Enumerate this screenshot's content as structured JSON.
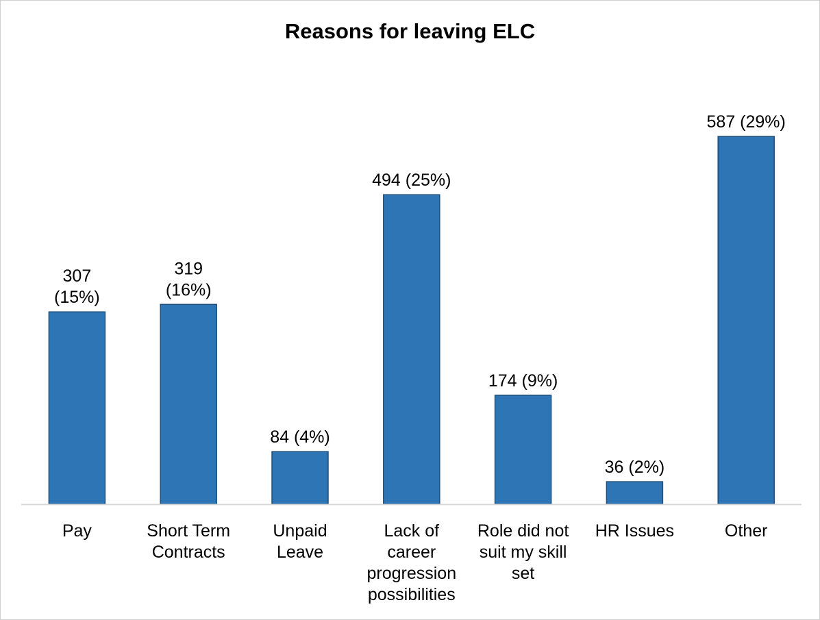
{
  "chart_data": {
    "type": "bar",
    "title": "Reasons for leaving ELC",
    "xlabel": "",
    "ylabel": "",
    "grid": false,
    "legend": "none",
    "ylim": [
      0,
      600
    ],
    "bar_color": "#2e75b6",
    "bar_edge_color": "#1f4e79",
    "axis_color": "#d9d9d9",
    "categories": [
      [
        "Pay"
      ],
      [
        "Short Term",
        "Contracts"
      ],
      [
        "Unpaid",
        "Leave"
      ],
      [
        "Lack of",
        "career",
        "progression",
        "possibilities"
      ],
      [
        "Role did not",
        "suit my skill",
        "set"
      ],
      [
        "HR Issues"
      ],
      [
        "Other"
      ]
    ],
    "values": [
      307,
      319,
      84,
      494,
      174,
      36,
      587
    ],
    "data_labels": [
      [
        "307",
        "(15%)"
      ],
      [
        "319",
        "(16%)"
      ],
      [
        "84 (4%)"
      ],
      [
        "494 (25%)"
      ],
      [
        "174 (9%)"
      ],
      [
        "36 (2%)"
      ],
      [
        "587 (29%)"
      ]
    ]
  }
}
